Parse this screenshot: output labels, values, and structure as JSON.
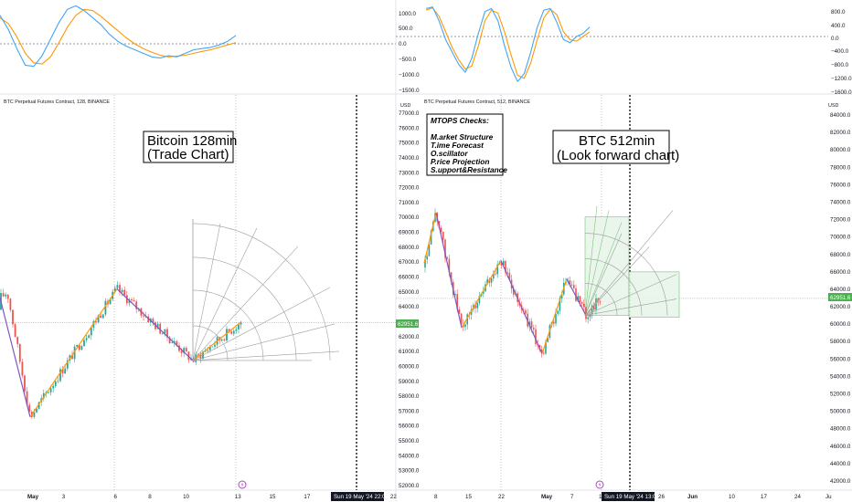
{
  "colors": {
    "up": "#26a69a",
    "down": "#ef5350",
    "cross": "#c8e6c9",
    "osc_fast": "#42a5f5",
    "osc_slow": "#ff9800",
    "wave_up": "#ff9800",
    "wave_down": "#7e57c2",
    "price_line": "#4caf50",
    "fan": "#9e9e9e"
  },
  "left_panel": {
    "header": "BTC Perpetual Futures Contract, 128, BINANCE",
    "box_lines": [
      "Bitcoin 128min",
      "(Trade Chart)"
    ],
    "price_badge": "62951.6",
    "date_badge": "Sun 19 May '24   22:08",
    "event_icon": "lightning-event-icon"
  },
  "right_panel": {
    "header": "BTC Perpetual Futures Contract, 512, BINANCE",
    "box_lines": [
      "BTC 512min",
      "(Look forward chart)"
    ],
    "checklist": [
      "MTOPS Checks:",
      "M.arket Structure",
      "T.ime Forecast",
      "O.scillator",
      "P.rice Projection",
      "S.upport&Resistance"
    ],
    "price_badge": "62951.6",
    "date_badge": "Sun 19 May '24   13:04",
    "event_icon": "lightning-event-icon"
  },
  "chart_data": [
    {
      "type": "candlestick",
      "title": "BTC Perpetual Futures Contract, 128, BINANCE",
      "ylabel": "USD",
      "ylim": [
        52000,
        77000
      ],
      "y_ticks": [
        52000,
        53000,
        54000,
        55000,
        56000,
        57000,
        58000,
        59000,
        60000,
        61000,
        62000,
        63000,
        64000,
        65000,
        66000,
        67000,
        68000,
        69000,
        70000,
        71000,
        72000,
        73000,
        74000,
        75000,
        76000,
        77000
      ],
      "x_ticks": [
        "May",
        "3",
        "6",
        "8",
        "10",
        "13",
        "15",
        "17",
        "22"
      ],
      "last_price": 62951.6,
      "zigzag": [
        {
          "date": "Apr 30",
          "price": 64600
        },
        {
          "date": "May 1",
          "price": 56600
        },
        {
          "date": "May 6",
          "price": 65200
        },
        {
          "date": "May 10",
          "price": 60400
        },
        {
          "date": "May 13",
          "price": 62951.6
        }
      ],
      "oscillator": {
        "fast": [
          120,
          60,
          -20,
          -90,
          -95,
          -50,
          20,
          90,
          145,
          160,
          140,
          110,
          80,
          40,
          10,
          -10,
          -25,
          -40,
          -55,
          -60,
          -50,
          -55,
          -40,
          -25,
          -20,
          -15,
          -5,
          10,
          35
        ],
        "slow": [
          110,
          85,
          30,
          -40,
          -80,
          -85,
          -55,
          5,
          70,
          120,
          145,
          140,
          115,
          85,
          55,
          25,
          0,
          -20,
          -35,
          -48,
          -55,
          -52,
          -48,
          -40,
          -32,
          -25,
          -15,
          -5,
          5
        ]
      }
    },
    {
      "type": "candlestick",
      "title": "BTC Perpetual Futures Contract, 512, BINANCE",
      "ylabel": "USD",
      "ylim": [
        42000,
        84000
      ],
      "y_ticks": [
        42000,
        44000,
        46000,
        48000,
        50000,
        52000,
        54000,
        56000,
        58000,
        60000,
        62000,
        64000,
        66000,
        68000,
        70000,
        72000,
        74000,
        76000,
        78000,
        80000,
        82000,
        84000
      ],
      "x_ticks": [
        "8",
        "15",
        "22",
        "May",
        "7",
        "13",
        "26",
        "Jun",
        "10",
        "17",
        "24",
        "Ju"
      ],
      "last_price": 62951.6,
      "zigzag": [
        {
          "date": "Apr 1",
          "price": 67000
        },
        {
          "date": "Apr 9",
          "price": 72800
        },
        {
          "date": "Apr 17",
          "price": 59600
        },
        {
          "date": "Apr 22",
          "price": 67300
        },
        {
          "date": "May 1",
          "price": 56600
        },
        {
          "date": "May 6",
          "price": 65200
        },
        {
          "date": "May 10",
          "price": 61000
        },
        {
          "date": "May 13",
          "price": 62951.6
        }
      ],
      "oscillator": {
        "ticks_left": [
          "1000.0",
          "500.0",
          "0.0",
          "−500.0",
          "−1000.0",
          "−1500.0"
        ],
        "ticks_right": [
          "800.0",
          "400.0",
          "0.0",
          "−400.0",
          "−800.0",
          "−1200.0",
          "−1600.0"
        ],
        "fast": [
          900,
          950,
          500,
          -100,
          -500,
          -900,
          -1150,
          -700,
          100,
          800,
          900,
          500,
          -300,
          -1000,
          -1450,
          -1200,
          -500,
          300,
          850,
          900,
          450,
          -100,
          -200,
          0,
          100,
          300
        ],
        "slow": [
          850,
          920,
          650,
          150,
          -350,
          -750,
          -1050,
          -950,
          -300,
          500,
          850,
          750,
          150,
          -600,
          -1250,
          -1350,
          -850,
          -100,
          600,
          880,
          700,
          150,
          -100,
          -150,
          0,
          150
        ]
      }
    }
  ]
}
